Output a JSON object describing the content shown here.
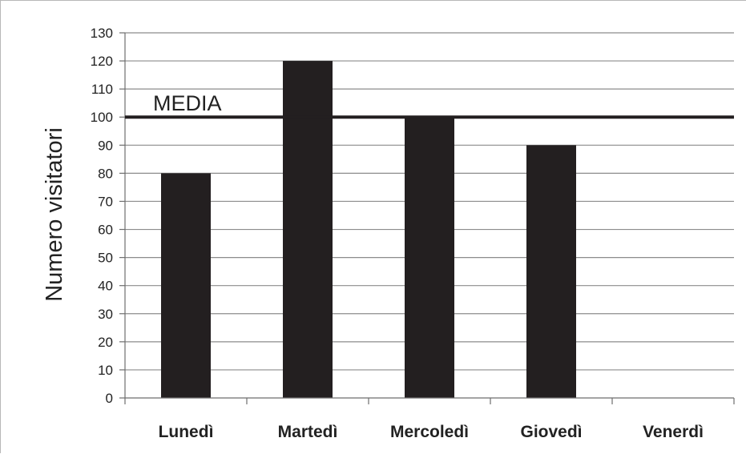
{
  "chart_data": {
    "type": "bar",
    "title": "",
    "xlabel": "",
    "ylabel": "Numero visitatori",
    "categories": [
      "Lunedì",
      "Martedì",
      "Mercoledì",
      "Giovedì",
      "Venerdì"
    ],
    "values": [
      80,
      120,
      100,
      90,
      null
    ],
    "ylim": [
      0,
      130
    ],
    "yticks": [
      "0",
      "10",
      "20",
      "30",
      "40",
      "50",
      "60",
      "70",
      "80",
      "90",
      "100",
      "110",
      "120",
      "130"
    ],
    "grid": true,
    "legend": "none",
    "reference_line": {
      "label": "MEDIA",
      "value": 100
    },
    "colors": {
      "bars": "#231f20",
      "grid": "#8c8c8c",
      "reference_line": "#231f20"
    }
  }
}
